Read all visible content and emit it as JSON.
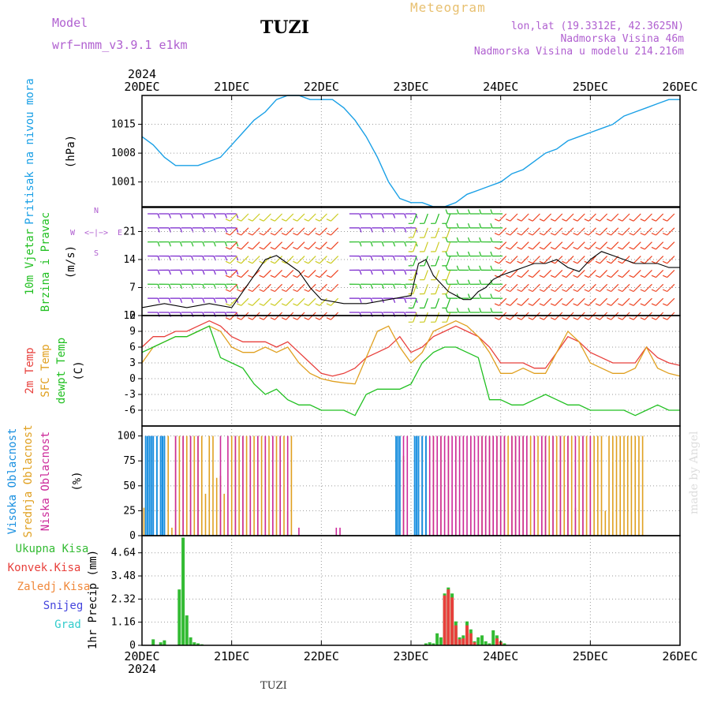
{
  "header": {
    "model_label": "Model",
    "model_name": "wrf−nmm_v3.9.1  e1km",
    "station": "TUZI",
    "product": "Meteogram",
    "coords": "lon,lat (19.3312E, 42.3625N)",
    "elevation": "Nadmorska Visina 46m",
    "model_elevation": "Nadmorska Visina u modelu 214.216m",
    "credit": "made by Angel",
    "footer_station": "TUZI"
  },
  "colors": {
    "pressure": "#1aa0e6",
    "temp_2m": "#e8403c",
    "temp_sfc": "#e0a020",
    "dewpoint": "#22c022",
    "cloud_high": "#1a90e0",
    "cloud_mid": "#e0a020",
    "cloud_low": "#cc2a9a",
    "precip_total": "#33bb33",
    "precip_conv": "#e8403c",
    "precip_frozen": "#f0883a",
    "precip_snow": "#4444dd",
    "precip_graupel": "#33cccc",
    "wind_speed_line": "#000000",
    "model_label": "#b060d0",
    "title_product": "#e8c070"
  },
  "chart_data": [
    {
      "id": "pressure",
      "type": "line",
      "ylabel": "Pritisak na nivou mora",
      "yunit": "(hPa)",
      "yticks": [
        1001,
        1008,
        1015
      ],
      "ylim": [
        995,
        1022
      ],
      "top_year": "2024",
      "series": [
        {
          "name": "Pritisak na nivou mora",
          "x_hours": [
            0,
            3,
            6,
            9,
            12,
            15,
            18,
            21,
            24,
            27,
            30,
            33,
            36,
            39,
            42,
            45,
            48,
            51,
            54,
            57,
            60,
            63,
            66,
            69,
            72,
            75,
            78,
            81,
            84,
            87,
            90,
            93,
            96,
            99,
            102,
            105,
            108,
            111,
            114,
            117,
            120,
            123,
            126,
            129,
            132,
            135,
            138,
            141,
            144
          ],
          "values": [
            1012,
            1010,
            1007,
            1005,
            1005,
            1005,
            1006,
            1007,
            1010,
            1013,
            1016,
            1018,
            1021,
            1022,
            1022,
            1021,
            1021,
            1021,
            1019,
            1016,
            1012,
            1007,
            1001,
            997,
            996,
            996,
            995,
            995,
            996,
            998,
            999,
            1000,
            1001,
            1003,
            1004,
            1006,
            1008,
            1009,
            1011,
            1012,
            1013,
            1014,
            1015,
            1017,
            1018,
            1019,
            1020,
            1021,
            1021
          ]
        }
      ]
    },
    {
      "id": "wind",
      "type": "line",
      "ylabel_1": "10m Vjetar",
      "ylabel_2": "Brzina i Pravac",
      "yunit": "(m/s)",
      "yticks": [
        0,
        7,
        14,
        21
      ],
      "ylim": [
        0,
        27
      ],
      "compass": {
        "n": "N",
        "s": "S",
        "e": "E",
        "w": "W",
        "glyph": "<−|−>"
      },
      "series": [
        {
          "name": "10m Vjetar",
          "x_hours": [
            0,
            6,
            12,
            18,
            24,
            27,
            30,
            33,
            36,
            39,
            42,
            45,
            48,
            54,
            60,
            66,
            72,
            74,
            76,
            78,
            80,
            82,
            84,
            86,
            88,
            90,
            92,
            94,
            96,
            99,
            102,
            105,
            108,
            111,
            114,
            117,
            120,
            123,
            126,
            129,
            132,
            135,
            138,
            141,
            144
          ],
          "values": [
            2,
            3,
            2,
            3,
            2,
            6,
            10,
            14,
            15,
            13,
            11,
            7,
            4,
            3,
            3,
            4,
            5,
            13,
            14,
            10,
            8,
            6,
            5,
            4,
            4,
            6,
            7,
            9,
            10,
            11,
            12,
            13,
            13,
            14,
            12,
            11,
            14,
            16,
            15,
            14,
            13,
            13,
            13,
            12,
            12
          ]
        }
      ],
      "barb_regimes": [
        {
          "from_hours": 0,
          "to_hours": 24,
          "speed": 5,
          "dir_deg": 90
        },
        {
          "from_hours": 24,
          "to_hours": 54,
          "speed": 12,
          "dir_deg": 225
        },
        {
          "from_hours": 54,
          "to_hours": 72,
          "speed": 5,
          "dir_deg": 90
        },
        {
          "from_hours": 72,
          "to_hours": 83,
          "speed": 9,
          "dir_deg": 200
        },
        {
          "from_hours": 83,
          "to_hours": 96,
          "speed": 7,
          "dir_deg": 270
        },
        {
          "from_hours": 96,
          "to_hours": 144,
          "speed": 14,
          "dir_deg": 225
        }
      ]
    },
    {
      "id": "temperature",
      "type": "line",
      "ylabel_1": "2m Temp",
      "ylabel_2": "SFC Temp",
      "ylabel_3": "dewpt Temp",
      "yunit": "(C)",
      "yticks": [
        -6,
        -3,
        0,
        3,
        6,
        9,
        12
      ],
      "ylim": [
        -9,
        12
      ],
      "series": [
        {
          "name": "2m Temp",
          "x_hours": [
            0,
            3,
            6,
            9,
            12,
            15,
            18,
            21,
            24,
            27,
            30,
            33,
            36,
            39,
            42,
            45,
            48,
            51,
            54,
            57,
            60,
            63,
            66,
            69,
            72,
            75,
            78,
            81,
            84,
            87,
            90,
            93,
            96,
            99,
            102,
            105,
            108,
            111,
            114,
            117,
            120,
            123,
            126,
            129,
            132,
            135,
            138,
            141,
            144
          ],
          "values": [
            6,
            8,
            8,
            9,
            9,
            10,
            11,
            10,
            8,
            7,
            7,
            7,
            6,
            7,
            5,
            3,
            1,
            0.5,
            1,
            2,
            4,
            5,
            6,
            8,
            5,
            6,
            8,
            9,
            10,
            9,
            8,
            6,
            3,
            3,
            3,
            2,
            2,
            5,
            8,
            7,
            5,
            4,
            3,
            3,
            3,
            6,
            4,
            3,
            2.5
          ]
        },
        {
          "name": "SFC Temp",
          "x_hours": [
            0,
            3,
            6,
            9,
            12,
            15,
            18,
            21,
            24,
            27,
            30,
            33,
            36,
            39,
            42,
            45,
            48,
            51,
            54,
            57,
            60,
            63,
            66,
            69,
            72,
            75,
            78,
            81,
            84,
            87,
            90,
            93,
            96,
            99,
            102,
            105,
            108,
            111,
            114,
            117,
            120,
            123,
            126,
            129,
            132,
            135,
            138,
            141,
            144
          ],
          "values": [
            3,
            6,
            7,
            8,
            8,
            9,
            10,
            9,
            6,
            5,
            5,
            6,
            5,
            6,
            3,
            1,
            0,
            -0.5,
            -0.8,
            -1,
            4,
            9,
            10,
            6,
            3,
            5,
            9,
            10,
            11,
            10,
            8,
            5,
            1,
            1,
            2,
            1,
            1,
            5,
            9,
            7,
            3,
            2,
            1,
            1,
            2,
            6,
            2,
            1,
            0.5
          ]
        },
        {
          "name": "dewpt Temp",
          "x_hours": [
            0,
            3,
            6,
            9,
            12,
            15,
            18,
            21,
            24,
            27,
            30,
            33,
            36,
            39,
            42,
            45,
            48,
            51,
            54,
            57,
            60,
            63,
            66,
            69,
            72,
            75,
            78,
            81,
            84,
            87,
            90,
            93,
            96,
            99,
            102,
            105,
            108,
            111,
            114,
            117,
            120,
            123,
            126,
            129,
            132,
            135,
            138,
            141,
            144
          ],
          "values": [
            5,
            6,
            7,
            8,
            8,
            9,
            10,
            4,
            3,
            2,
            -1,
            -3,
            -2,
            -4,
            -5,
            -5,
            -6,
            -6,
            -6,
            -7,
            -3,
            -2,
            -2,
            -2,
            -1,
            3,
            5,
            6,
            6,
            5,
            4,
            -4,
            -4,
            -5,
            -5,
            -4,
            -3,
            -4,
            -5,
            -5,
            -6,
            -6,
            -6,
            -6,
            -7,
            -6,
            -5,
            -6,
            -6
          ]
        }
      ]
    },
    {
      "id": "clouds",
      "type": "bar",
      "ylabel_1": "Visoka Oblacnost",
      "ylabel_2": "Srednja Oblacnost",
      "ylabel_3": "Niska Oblacnost",
      "yunit": "(%)",
      "yticks": [
        0,
        25,
        50,
        75,
        100
      ],
      "ylim": [
        0,
        100
      ],
      "series": [
        {
          "name": "Visoka Oblacnost",
          "x_hours": [
            1,
            1.5,
            2,
            2.5,
            3,
            4,
            5,
            5.5,
            6,
            68,
            68.5,
            69,
            73,
            73.5,
            74,
            75,
            76
          ],
          "values": [
            100,
            100,
            100,
            100,
            100,
            100,
            100,
            100,
            100,
            100,
            100,
            100,
            100,
            100,
            100,
            100,
            100
          ]
        },
        {
          "name": "Srednja Oblacnost",
          "x_hours": [
            0.5,
            1,
            2,
            6,
            7,
            8,
            9,
            10,
            11,
            12,
            13,
            14,
            15,
            16,
            17,
            18,
            19,
            20,
            21,
            22,
            24,
            25,
            26,
            27,
            28,
            29,
            30,
            31,
            32,
            33,
            34,
            35,
            36,
            37,
            38,
            39,
            40,
            68,
            69,
            70,
            74,
            75,
            76,
            78,
            80,
            82,
            84,
            86,
            88,
            90,
            91,
            92,
            93,
            94,
            95,
            96,
            97,
            98,
            99,
            100,
            101,
            102,
            103,
            104,
            105,
            106,
            107,
            108,
            109,
            110,
            111,
            112,
            113,
            114,
            115,
            116,
            117,
            118,
            119,
            120,
            121,
            122,
            123,
            124,
            125,
            126,
            127,
            128,
            129,
            130,
            131,
            132,
            133,
            134
          ],
          "values": [
            28,
            58,
            100,
            100,
            100,
            8,
            100,
            100,
            100,
            100,
            100,
            100,
            100,
            100,
            42,
            100,
            100,
            58,
            60,
            42,
            100,
            100,
            100,
            100,
            100,
            100,
            100,
            100,
            100,
            100,
            100,
            100,
            100,
            100,
            100,
            25,
            100,
            100,
            100,
            80,
            100,
            100,
            100,
            100,
            100,
            100,
            100,
            100,
            100,
            100,
            100,
            100,
            100,
            100,
            100,
            100,
            100,
            100,
            100,
            100,
            100,
            100,
            100,
            100,
            100,
            100,
            100,
            100,
            100,
            100,
            100,
            100,
            100,
            100,
            100,
            28,
            100,
            100,
            100,
            100,
            100,
            100,
            100,
            25,
            100,
            100,
            100,
            100,
            100,
            100,
            100,
            100,
            100,
            100
          ]
        },
        {
          "name": "Niska Oblacnost",
          "x_hours": [
            2,
            3,
            5,
            9,
            11,
            13,
            15,
            21,
            23,
            25,
            27,
            29,
            31,
            33,
            35,
            37,
            39,
            42,
            52,
            53,
            70,
            71,
            75,
            76,
            77,
            78,
            79,
            80,
            81,
            82,
            83,
            84,
            85,
            86,
            87,
            88,
            89,
            90,
            91,
            92,
            93,
            94,
            95,
            96,
            97,
            99,
            100,
            101,
            102,
            103,
            105,
            107,
            108,
            110,
            112,
            114,
            116,
            118,
            120
          ],
          "values": [
            100,
            100,
            100,
            100,
            100,
            100,
            100,
            100,
            100,
            100,
            100,
            100,
            100,
            100,
            100,
            100,
            100,
            8,
            8,
            8,
            100,
            100,
            100,
            100,
            100,
            100,
            100,
            100,
            100,
            100,
            100,
            100,
            100,
            100,
            100,
            100,
            100,
            100,
            100,
            100,
            100,
            100,
            100,
            100,
            100,
            100,
            100,
            100,
            100,
            100,
            100,
            100,
            100,
            100,
            100,
            100,
            100,
            100,
            100
          ]
        }
      ]
    },
    {
      "id": "precip",
      "type": "bar",
      "ylabel": "1hr Precip",
      "yunit": "(mm)",
      "yticks": [
        0,
        1.16,
        2.32,
        3.48,
        4.64
      ],
      "ylim": [
        0,
        5.5
      ],
      "legend": [
        "Ukupna Kisa",
        "Konvek.Kisa",
        "Zaledj.Kisa",
        "Snijeg",
        "Grad"
      ],
      "series": [
        {
          "name": "Ukupna Kisa",
          "x_hours": [
            3,
            5,
            6,
            10,
            11,
            12,
            13,
            14,
            15,
            16,
            76,
            77,
            78,
            79,
            80,
            81,
            82,
            83,
            84,
            85,
            86,
            87,
            88,
            89,
            90,
            91,
            92,
            93,
            94,
            95,
            96,
            97
          ],
          "values": [
            0.3,
            0.15,
            0.25,
            2.8,
            5.4,
            1.5,
            0.4,
            0.15,
            0.1,
            0.05,
            0.1,
            0.15,
            0.1,
            0.6,
            0.4,
            2.6,
            2.9,
            2.6,
            1.2,
            0.4,
            0.5,
            1.2,
            0.8,
            0.2,
            0.4,
            0.5,
            0.2,
            0.1,
            0.75,
            0.5,
            0.2,
            0.1
          ]
        },
        {
          "name": "Konvek.Kisa",
          "x_hours": [
            81,
            82,
            83,
            84,
            85,
            86,
            87,
            88,
            89,
            95,
            96
          ],
          "values": [
            2.5,
            2.8,
            2.4,
            1.0,
            0.3,
            0.35,
            1.0,
            0.6,
            0.15,
            0.35,
            0.15
          ]
        }
      ],
      "bottom_year": "2024",
      "x_tick_labels": [
        "20DEC",
        "21DEC",
        "22DEC",
        "23DEC",
        "24DEC",
        "25DEC",
        "26DEC"
      ]
    }
  ]
}
